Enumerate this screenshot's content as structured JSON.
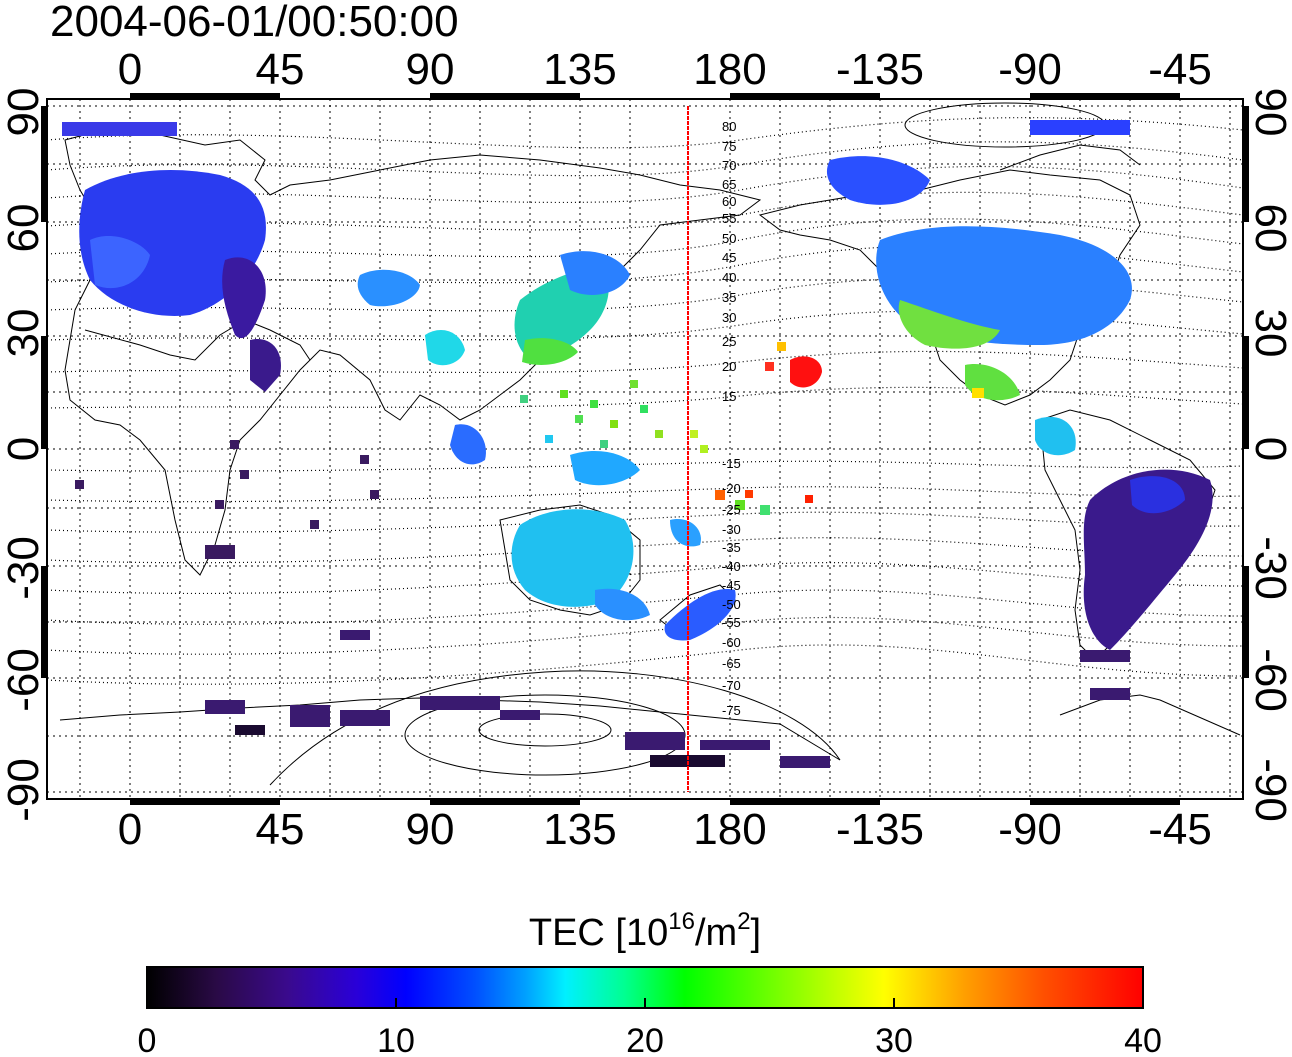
{
  "title": "2004-06-01/00:50:00",
  "map": {
    "lon_ticks_top": [
      "0",
      "45",
      "90",
      "135",
      "180",
      "-135",
      "-90",
      "-45"
    ],
    "lon_ticks_bottom": [
      "0",
      "45",
      "90",
      "135",
      "180",
      "-135",
      "-90",
      "-45"
    ],
    "lat_ticks_left": [
      "90",
      "60",
      "30",
      "0",
      "-30",
      "-60",
      "-90"
    ],
    "lat_ticks_right": [
      "90",
      "60",
      "30",
      "0",
      "-30",
      "-60",
      "-90"
    ],
    "contour_labels": [
      "80",
      "75",
      "70",
      "65",
      "60",
      "55",
      "50",
      "45",
      "40",
      "35",
      "30",
      "25",
      "20",
      "15",
      "-15",
      "-20",
      "-25",
      "-30",
      "-35",
      "-40",
      "-45",
      "-50",
      "-55",
      "-60",
      "-65",
      "-70",
      "-75"
    ],
    "reference_line_lon": 168,
    "reference_line_color": "#ff0000"
  },
  "colorbar": {
    "label_main": "TEC  [10",
    "label_exp1": "16",
    "label_mid": "/m",
    "label_exp2": "2",
    "label_end": "]",
    "min": 0,
    "max": 40,
    "ticks": [
      "0",
      "10",
      "20",
      "30",
      "40"
    ],
    "colormap": [
      "#000000",
      "#2a0a46",
      "#3a0a8c",
      "#2a00d8",
      "#0000ff",
      "#0050ff",
      "#00a0ff",
      "#00f0ff",
      "#00ff90",
      "#00ff00",
      "#80ff00",
      "#ffff00",
      "#ffa000",
      "#ff5000",
      "#ff0000"
    ]
  }
}
